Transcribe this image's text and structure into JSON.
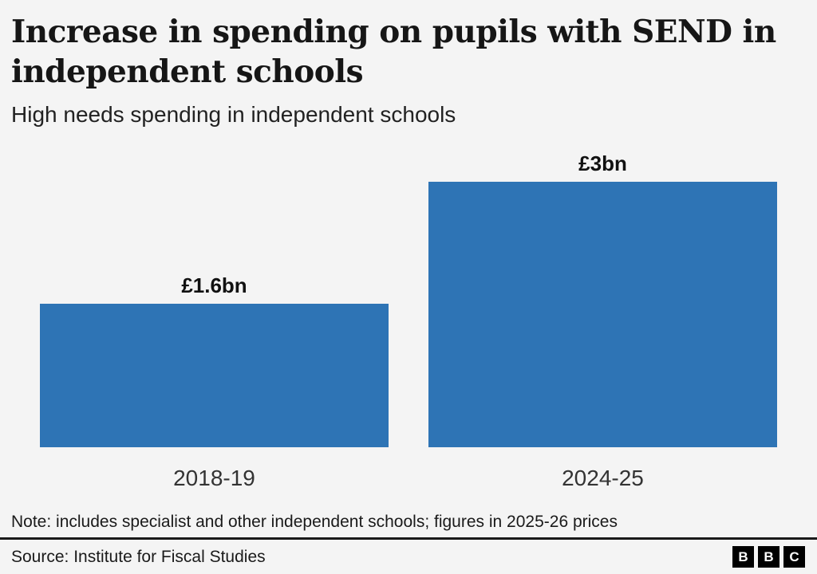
{
  "header": {
    "title": "Increase in spending on pupils with SEND in independent schools",
    "subtitle": "High needs spending in independent schools"
  },
  "chart_data": {
    "type": "bar",
    "categories": [
      "2018-19",
      "2024-25"
    ],
    "values": [
      1.6,
      3
    ],
    "value_labels": [
      "£1.6bn",
      "£3bn"
    ],
    "title": "Increase in spending on pupils with SEND in independent schools",
    "subtitle": "High needs spending in independent schools",
    "xlabel": "",
    "ylabel": "",
    "ylim": [
      0,
      3.3
    ],
    "grid": false,
    "legend": "none",
    "bar_color": "#2e74b5",
    "background_color": "#f4f4f4"
  },
  "footer": {
    "note": "Note: includes specialist and other independent schools; figures in 2025-26 prices",
    "source": "Source: Institute for Fiscal Studies",
    "logo_letters": [
      "B",
      "B",
      "C"
    ]
  }
}
